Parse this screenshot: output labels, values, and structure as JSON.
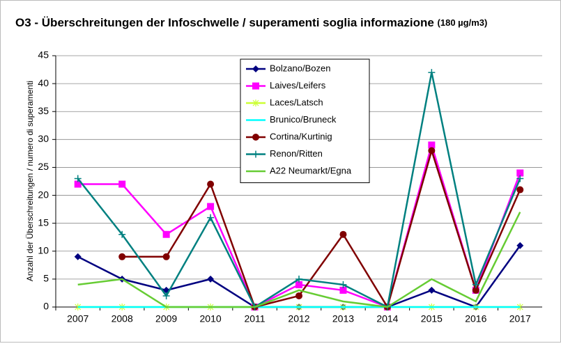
{
  "chart_data": {
    "type": "line",
    "title": "O3 - Überschreitungen der Infoschwelle / superamenti soglia informazione",
    "title_unit": "(180 µg/m3)",
    "y_label": "Anzahl der Überschreitungen / numero di superamenti",
    "categories": [
      "2007",
      "2008",
      "2009",
      "2010",
      "2011",
      "2012",
      "2013",
      "2014",
      "2015",
      "2016",
      "2017"
    ],
    "ylim": [
      0,
      45
    ],
    "yticks": [
      0,
      5,
      10,
      15,
      20,
      25,
      30,
      35,
      40,
      45
    ],
    "grid": true,
    "series": [
      {
        "name": "Bolzano/Bozen",
        "color": "#000080",
        "marker": "diamond",
        "values": [
          9,
          5,
          3,
          5,
          0,
          0,
          0,
          0,
          3,
          0,
          11
        ]
      },
      {
        "name": "Laives/Leifers",
        "color": "#ff00ff",
        "marker": "square",
        "values": [
          22,
          22,
          13,
          18,
          0,
          4,
          3,
          0,
          29,
          3,
          24
        ]
      },
      {
        "name": "Laces/Latsch",
        "color": "#ccff33",
        "marker": "star",
        "values": [
          0,
          0,
          0,
          0,
          0,
          0,
          0,
          0,
          0,
          0,
          0
        ]
      },
      {
        "name": "Brunico/Bruneck",
        "color": "#00ffff",
        "marker": "none",
        "values": [
          0,
          0,
          0,
          0,
          0,
          0,
          0,
          0,
          0,
          0,
          0
        ]
      },
      {
        "name": "Cortina/Kurtinig",
        "color": "#800000",
        "marker": "circle",
        "values": [
          null,
          9,
          9,
          22,
          0,
          2,
          13,
          0,
          28,
          3,
          21
        ]
      },
      {
        "name": "Renon/Ritten",
        "color": "#008080",
        "marker": "plus",
        "values": [
          23,
          13,
          2,
          16,
          0,
          5,
          4,
          0,
          42,
          4,
          23
        ]
      },
      {
        "name": "A22 Neumarkt/Egna",
        "color": "#66cc33",
        "marker": "none",
        "values": [
          4,
          5,
          0,
          0,
          0,
          3,
          1,
          0,
          5,
          1,
          17
        ]
      }
    ]
  }
}
